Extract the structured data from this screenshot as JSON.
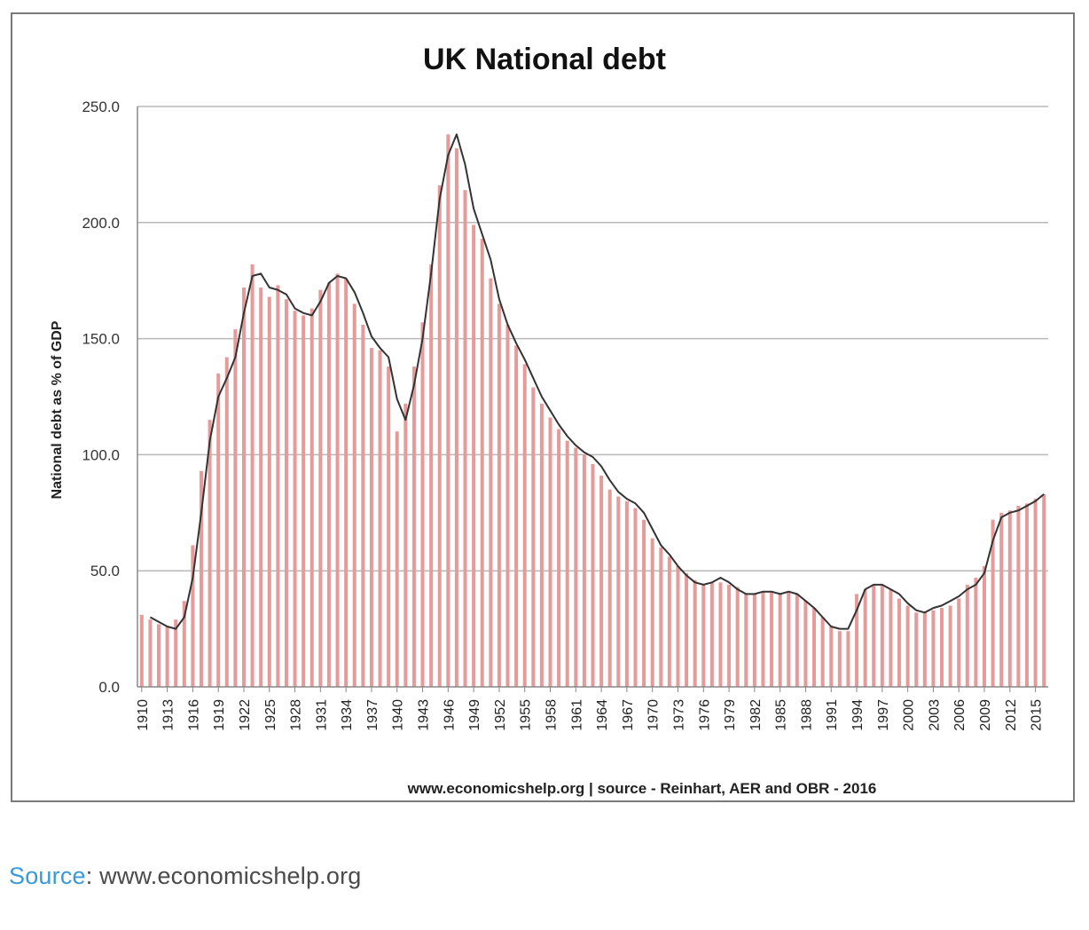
{
  "caption": {
    "link_label": "Source",
    "separator": ":",
    "text": "www.economicshelp.org"
  },
  "colors": {
    "bar": "#e69b9b",
    "line": "#333333",
    "grid": "#b8b8b8",
    "caption_link": "#3a9ad9"
  },
  "chart_data": {
    "type": "bar",
    "title": "UK National debt",
    "ylabel": "National debt as % of GDP",
    "xlabel": "",
    "footer": "www.economicshelp.org | source - Reinhart, AER and OBR - 2016",
    "ylim": [
      0,
      250
    ],
    "yticks": [
      "0.0",
      "50.0",
      "100.0",
      "150.0",
      "200.0",
      "250.0"
    ],
    "grid": true,
    "years": [
      1910,
      1911,
      1912,
      1913,
      1914,
      1915,
      1916,
      1917,
      1918,
      1919,
      1920,
      1921,
      1922,
      1923,
      1924,
      1925,
      1926,
      1927,
      1928,
      1929,
      1930,
      1931,
      1932,
      1933,
      1934,
      1935,
      1936,
      1937,
      1938,
      1939,
      1940,
      1941,
      1942,
      1943,
      1944,
      1945,
      1946,
      1947,
      1948,
      1949,
      1950,
      1951,
      1952,
      1953,
      1954,
      1955,
      1956,
      1957,
      1958,
      1959,
      1960,
      1961,
      1962,
      1963,
      1964,
      1965,
      1966,
      1967,
      1968,
      1969,
      1970,
      1971,
      1972,
      1973,
      1974,
      1975,
      1976,
      1977,
      1978,
      1979,
      1980,
      1981,
      1982,
      1983,
      1984,
      1985,
      1986,
      1987,
      1988,
      1989,
      1990,
      1991,
      1992,
      1993,
      1994,
      1995,
      1996,
      1997,
      1998,
      1999,
      2000,
      2001,
      2002,
      2003,
      2004,
      2005,
      2006,
      2007,
      2008,
      2009,
      2010,
      2011,
      2012,
      2013,
      2014,
      2015,
      2016
    ],
    "xtick_labels": [
      "1910",
      "1913",
      "1916",
      "1919",
      "1922",
      "1925",
      "1928",
      "1931",
      "1934",
      "1937",
      "1940",
      "1943",
      "1946",
      "1949",
      "1952",
      "1955",
      "1958",
      "1961",
      "1964",
      "1967",
      "1970",
      "1973",
      "1976",
      "1979",
      "1982",
      "1985",
      "1988",
      "1991",
      "1994",
      "1997",
      "2000",
      "2003",
      "2006",
      "2009",
      "2012",
      "2015"
    ],
    "series": [
      {
        "kind": "bar",
        "values": [
          31,
          29,
          27,
          26,
          29,
          37,
          61,
          93,
          115,
          135,
          142,
          154,
          172,
          182,
          172,
          168,
          173,
          167,
          162,
          160,
          163,
          171,
          174,
          178,
          176,
          165,
          156,
          146,
          145,
          138,
          110,
          122,
          138,
          157,
          182,
          216,
          238,
          232,
          214,
          199,
          193,
          176,
          165,
          156,
          147,
          139,
          129,
          122,
          116,
          111,
          106,
          103,
          100,
          96,
          91,
          85,
          82,
          80,
          77,
          72,
          64,
          60,
          56,
          52,
          49,
          46,
          44,
          45,
          45,
          44,
          43,
          40,
          40,
          41,
          41,
          40,
          41,
          40,
          37,
          34,
          30,
          26,
          24,
          24,
          40,
          42,
          44,
          44,
          42,
          38,
          35,
          32,
          32,
          33,
          34,
          35,
          38,
          44,
          47,
          52,
          72,
          75,
          76,
          78,
          79,
          81,
          83
        ]
      },
      {
        "kind": "line",
        "values": [
          null,
          30,
          28,
          26,
          25,
          30,
          47,
          75,
          106,
          125,
          133,
          142,
          161,
          177,
          178,
          172,
          171,
          169,
          163,
          161,
          160,
          166,
          174,
          177,
          176,
          170,
          161,
          151,
          146,
          142,
          124,
          115,
          130,
          150,
          178,
          210,
          229,
          238,
          225,
          206,
          195,
          184,
          167,
          156,
          148,
          141,
          133,
          125,
          119,
          113,
          108,
          104,
          101,
          99,
          95,
          89,
          84,
          81,
          79,
          75,
          68,
          61,
          57,
          52,
          48,
          45,
          44,
          45,
          47,
          45,
          42,
          40,
          40,
          41,
          41,
          40,
          41,
          40,
          37,
          34,
          30,
          26,
          25,
          25,
          33,
          42,
          44,
          44,
          42,
          40,
          36,
          33,
          32,
          34,
          35,
          37,
          39,
          42,
          44,
          49,
          63,
          73,
          75,
          76,
          78,
          80,
          83
        ]
      }
    ]
  }
}
